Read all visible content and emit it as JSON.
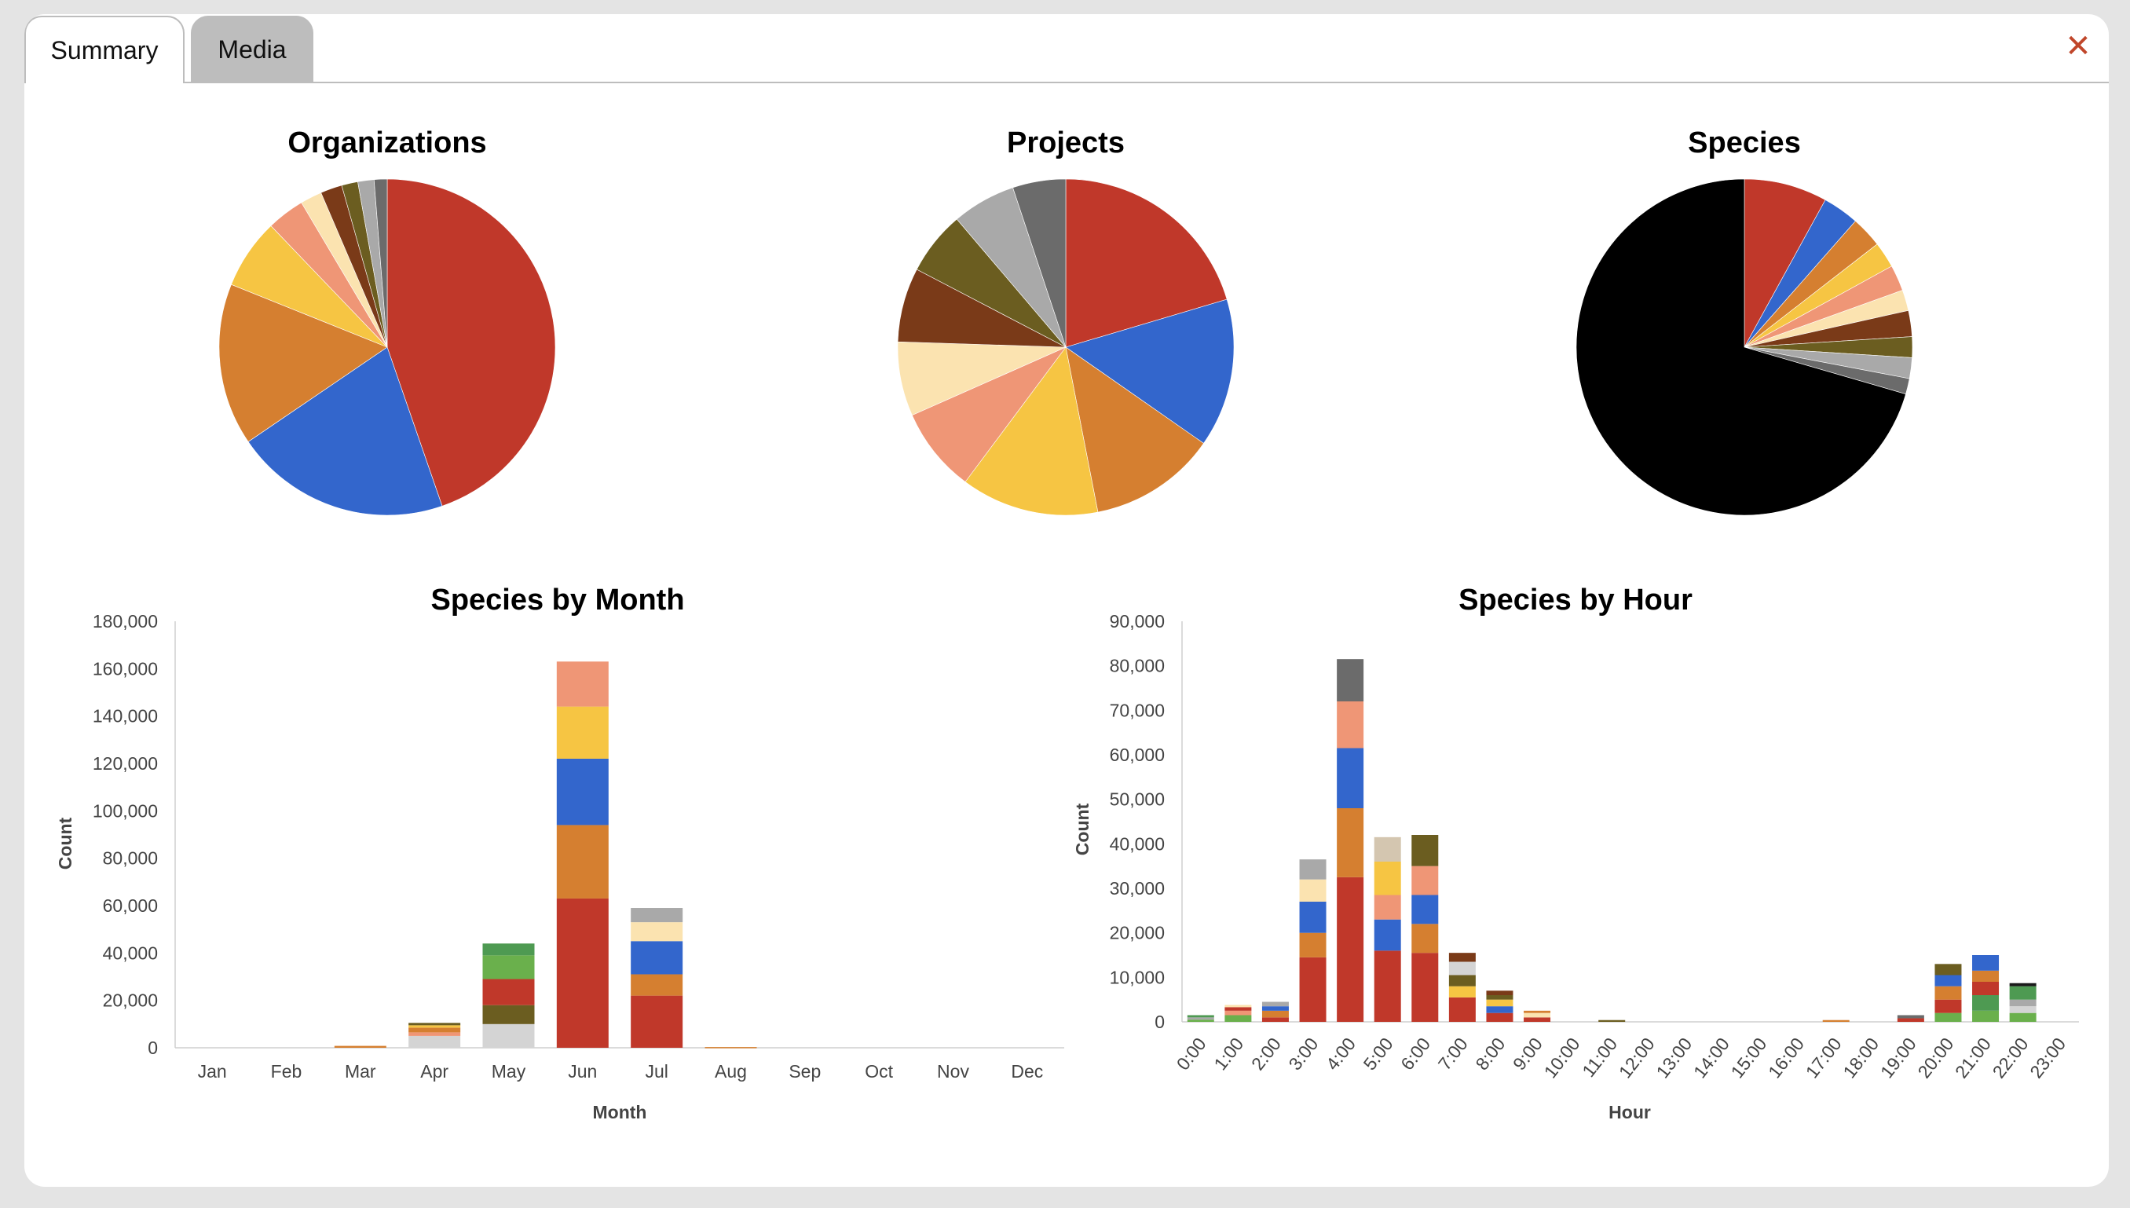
{
  "tabs": {
    "summary": "Summary",
    "media": "Media"
  },
  "close_label": "✕",
  "colors": {
    "accent_close": "#c0462a",
    "tab_active_bg": "#ffffff",
    "tab_inactive_bg": "#bdbdbd"
  },
  "chart_data": [
    {
      "type": "pie",
      "title": "Organizations",
      "values": [
        43,
        20,
        15,
        6.5,
        3.5,
        2,
        2,
        1.5,
        1.5,
        1.2
      ],
      "colors": [
        "#c0382a",
        "#3366cc",
        "#d57f30",
        "#f6c543",
        "#ef9676",
        "#fbe3b0",
        "#7a3a18",
        "#6b5d20",
        "#a9a9a9",
        "#6b6b6b"
      ]
    },
    {
      "type": "pie",
      "title": "Projects",
      "values": [
        20,
        14,
        12,
        13,
        8,
        7,
        7,
        6,
        6,
        5
      ],
      "colors": [
        "#c0382a",
        "#3366cc",
        "#d57f30",
        "#f6c543",
        "#ef9676",
        "#fbe3b0",
        "#7a3a18",
        "#6b5d20",
        "#a9a9a9",
        "#6b6b6b"
      ]
    },
    {
      "type": "pie",
      "title": "Species",
      "values": [
        8,
        3.5,
        3,
        2.5,
        2.5,
        2,
        2.5,
        2,
        2,
        1.5,
        70.5
      ],
      "colors": [
        "#c0382a",
        "#3366cc",
        "#d57f30",
        "#f6c543",
        "#ef9676",
        "#fbe3b0",
        "#7a3a18",
        "#6b5d20",
        "#a9a9a9",
        "#6b6b6b",
        "#000000"
      ]
    },
    {
      "type": "bar",
      "stacked": true,
      "title": "Species by Month",
      "xlabel": "Month",
      "ylabel": "Count",
      "ylim": [
        0,
        180000
      ],
      "yticks": [
        "0",
        "20,000",
        "40,000",
        "60,000",
        "80,000",
        "100,000",
        "120,000",
        "140,000",
        "160,000",
        "180,000"
      ],
      "categories": [
        "Jan",
        "Feb",
        "Mar",
        "Apr",
        "May",
        "Jun",
        "Jul",
        "Aug",
        "Sep",
        "Oct",
        "Nov",
        "Dec"
      ],
      "stacks": [
        [],
        [],
        [
          {
            "v": 800,
            "c": "#d57f30"
          }
        ],
        [
          {
            "v": 5000,
            "c": "#d4d4d4"
          },
          {
            "v": 1500,
            "c": "#ef9676"
          },
          {
            "v": 2000,
            "c": "#d57f30"
          },
          {
            "v": 1000,
            "c": "#f6c543"
          },
          {
            "v": 1000,
            "c": "#6b5d20"
          }
        ],
        [
          {
            "v": 10000,
            "c": "#d4d4d4"
          },
          {
            "v": 8000,
            "c": "#6b5d20"
          },
          {
            "v": 11000,
            "c": "#c0382a"
          },
          {
            "v": 10000,
            "c": "#6ab04c"
          },
          {
            "v": 5000,
            "c": "#4e9a52"
          }
        ],
        [
          {
            "v": 63000,
            "c": "#c0382a"
          },
          {
            "v": 31000,
            "c": "#d57f30"
          },
          {
            "v": 28000,
            "c": "#3366cc"
          },
          {
            "v": 22000,
            "c": "#f6c543"
          },
          {
            "v": 19000,
            "c": "#ef9676"
          }
        ],
        [
          {
            "v": 22000,
            "c": "#c0382a"
          },
          {
            "v": 9000,
            "c": "#d57f30"
          },
          {
            "v": 14000,
            "c": "#3366cc"
          },
          {
            "v": 8000,
            "c": "#fbe3b0"
          },
          {
            "v": 6000,
            "c": "#a9a9a9"
          }
        ],
        [
          {
            "v": 300,
            "c": "#d57f30"
          }
        ],
        [],
        [],
        [],
        []
      ]
    },
    {
      "type": "bar",
      "stacked": true,
      "title": "Species by Hour",
      "xlabel": "Hour",
      "ylabel": "Count",
      "ylim": [
        0,
        90000
      ],
      "yticks": [
        "0",
        "10,000",
        "20,000",
        "30,000",
        "40,000",
        "50,000",
        "60,000",
        "70,000",
        "80,000",
        "90,000"
      ],
      "categories": [
        "0:00",
        "1:00",
        "2:00",
        "3:00",
        "4:00",
        "5:00",
        "6:00",
        "7:00",
        "8:00",
        "9:00",
        "10:00",
        "11:00",
        "12:00",
        "13:00",
        "14:00",
        "15:00",
        "16:00",
        "17:00",
        "18:00",
        "19:00",
        "20:00",
        "21:00",
        "22:00",
        "23:00"
      ],
      "stacks": [
        [
          {
            "v": 500,
            "c": "#6ab04c"
          },
          {
            "v": 500,
            "c": "#a9a9a9"
          },
          {
            "v": 500,
            "c": "#4e9a52"
          }
        ],
        [
          {
            "v": 1500,
            "c": "#6ab04c"
          },
          {
            "v": 1000,
            "c": "#ef9676"
          },
          {
            "v": 800,
            "c": "#c0382a"
          },
          {
            "v": 500,
            "c": "#fbe3b0"
          }
        ],
        [
          {
            "v": 1000,
            "c": "#c0382a"
          },
          {
            "v": 1500,
            "c": "#d57f30"
          },
          {
            "v": 1000,
            "c": "#3366cc"
          },
          {
            "v": 1000,
            "c": "#a9a9a9"
          }
        ],
        [
          {
            "v": 14500,
            "c": "#c0382a"
          },
          {
            "v": 5500,
            "c": "#d57f30"
          },
          {
            "v": 7000,
            "c": "#3366cc"
          },
          {
            "v": 5000,
            "c": "#fbe3b0"
          },
          {
            "v": 4500,
            "c": "#a9a9a9"
          }
        ],
        [
          {
            "v": 32500,
            "c": "#c0382a"
          },
          {
            "v": 15500,
            "c": "#d57f30"
          },
          {
            "v": 13500,
            "c": "#3366cc"
          },
          {
            "v": 10500,
            "c": "#ef9676"
          },
          {
            "v": 9500,
            "c": "#6b6b6b"
          }
        ],
        [
          {
            "v": 16000,
            "c": "#c0382a"
          },
          {
            "v": 7000,
            "c": "#3366cc"
          },
          {
            "v": 5500,
            "c": "#ef9676"
          },
          {
            "v": 7500,
            "c": "#f6c543"
          },
          {
            "v": 5500,
            "c": "#d4c6b0"
          }
        ],
        [
          {
            "v": 15500,
            "c": "#c0382a"
          },
          {
            "v": 6500,
            "c": "#d57f30"
          },
          {
            "v": 6500,
            "c": "#3366cc"
          },
          {
            "v": 6500,
            "c": "#ef9676"
          },
          {
            "v": 7000,
            "c": "#6b5d20"
          }
        ],
        [
          {
            "v": 5500,
            "c": "#c0382a"
          },
          {
            "v": 2500,
            "c": "#f6c543"
          },
          {
            "v": 2500,
            "c": "#6b5d20"
          },
          {
            "v": 3000,
            "c": "#d4d4d4"
          },
          {
            "v": 2000,
            "c": "#7a3a18"
          }
        ],
        [
          {
            "v": 2000,
            "c": "#c0382a"
          },
          {
            "v": 1500,
            "c": "#3366cc"
          },
          {
            "v": 1500,
            "c": "#f6c543"
          },
          {
            "v": 1000,
            "c": "#6b5d20"
          },
          {
            "v": 1000,
            "c": "#7a3a18"
          }
        ],
        [
          {
            "v": 1000,
            "c": "#c0382a"
          },
          {
            "v": 1000,
            "c": "#fbe3b0"
          },
          {
            "v": 500,
            "c": "#d57f30"
          }
        ],
        [],
        [
          {
            "v": 400,
            "c": "#6b5d20"
          }
        ],
        [],
        [],
        [],
        [],
        [],
        [
          {
            "v": 400,
            "c": "#d57f30"
          }
        ],
        [],
        [
          {
            "v": 800,
            "c": "#c0382a"
          },
          {
            "v": 700,
            "c": "#6b6b6b"
          }
        ],
        [
          {
            "v": 2000,
            "c": "#6ab04c"
          },
          {
            "v": 3000,
            "c": "#c0382a"
          },
          {
            "v": 3000,
            "c": "#d57f30"
          },
          {
            "v": 2500,
            "c": "#3366cc"
          },
          {
            "v": 2500,
            "c": "#6b5d20"
          }
        ],
        [
          {
            "v": 2500,
            "c": "#6ab04c"
          },
          {
            "v": 3500,
            "c": "#4e9a52"
          },
          {
            "v": 3000,
            "c": "#c0382a"
          },
          {
            "v": 2500,
            "c": "#d57f30"
          },
          {
            "v": 3500,
            "c": "#3366cc"
          }
        ],
        [
          {
            "v": 2000,
            "c": "#6ab04c"
          },
          {
            "v": 1500,
            "c": "#d4d4d4"
          },
          {
            "v": 1500,
            "c": "#a9a9a9"
          },
          {
            "v": 3000,
            "c": "#4e9a52"
          },
          {
            "v": 700,
            "c": "#1a1a1a"
          }
        ],
        []
      ]
    }
  ]
}
